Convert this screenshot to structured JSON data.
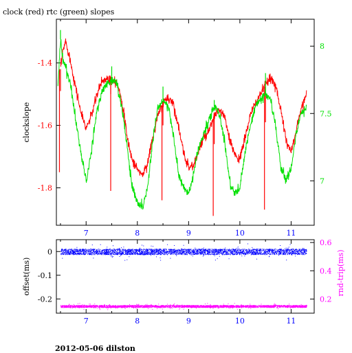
{
  "header": {
    "title": "clock (red) rtc (green) slopes"
  },
  "footer": {
    "caption": "2012-05-06 dilston"
  },
  "colors": {
    "clock": "#ff0000",
    "rtc": "#00e000",
    "offset": "#0000ff",
    "roundtrip": "#ff00ff",
    "axis": "#000000"
  },
  "chart_data": [
    {
      "type": "line",
      "title": "clock (red) rtc (green) slopes",
      "xlabel": "",
      "ylabel": "clockslope",
      "y2label": "",
      "xlim": [
        6.42,
        11.45
      ],
      "ylim": [
        -1.92,
        -1.26
      ],
      "y2lim": [
        6.67,
        8.2
      ],
      "x_ticks": [
        7,
        8,
        9,
        10,
        11
      ],
      "x_tick_labels": [
        "7",
        "8",
        "9",
        "10",
        "11"
      ],
      "y_ticks": [
        -1.4,
        -1.6,
        -1.8
      ],
      "y_tick_labels": [
        "-1.4",
        "-1.6",
        "-1.8"
      ],
      "y2_ticks": [
        8,
        7.5,
        7
      ],
      "y2_tick_labels": [
        "8",
        "7.5",
        "7"
      ],
      "grid": false,
      "series": [
        {
          "name": "clock",
          "axis": "left",
          "color": "#ff0000",
          "x": [
            6.5,
            6.55,
            6.6,
            6.65,
            6.7,
            6.8,
            6.9,
            7.0,
            7.1,
            7.2,
            7.3,
            7.4,
            7.5,
            7.6,
            7.7,
            7.8,
            7.9,
            8.0,
            8.1,
            8.2,
            8.3,
            8.4,
            8.5,
            8.6,
            8.7,
            8.8,
            8.9,
            9.0,
            9.1,
            9.2,
            9.3,
            9.4,
            9.5,
            9.6,
            9.7,
            9.8,
            9.9,
            10.0,
            10.1,
            10.2,
            10.3,
            10.4,
            10.5,
            10.6,
            10.7,
            10.8,
            10.9,
            11.0,
            11.1,
            11.2,
            11.3
          ],
          "y": [
            -1.42,
            -1.36,
            -1.33,
            -1.36,
            -1.4,
            -1.48,
            -1.56,
            -1.61,
            -1.57,
            -1.51,
            -1.46,
            -1.45,
            -1.45,
            -1.46,
            -1.52,
            -1.64,
            -1.71,
            -1.74,
            -1.76,
            -1.72,
            -1.64,
            -1.57,
            -1.53,
            -1.51,
            -1.53,
            -1.6,
            -1.69,
            -1.73,
            -1.73,
            -1.68,
            -1.64,
            -1.62,
            -1.57,
            -1.55,
            -1.57,
            -1.65,
            -1.69,
            -1.71,
            -1.64,
            -1.57,
            -1.53,
            -1.5,
            -1.47,
            -1.45,
            -1.47,
            -1.55,
            -1.65,
            -1.68,
            -1.62,
            -1.54,
            -1.5
          ],
          "spikes": [
            {
              "x": 6.48,
              "y": -1.75
            },
            {
              "x": 6.5,
              "y": -1.49
            },
            {
              "x": 7.48,
              "y": -1.81
            },
            {
              "x": 7.48,
              "y": -1.5
            },
            {
              "x": 8.48,
              "y": -1.84
            },
            {
              "x": 8.5,
              "y": -1.6
            },
            {
              "x": 9.48,
              "y": -1.89
            },
            {
              "x": 9.5,
              "y": -1.66
            },
            {
              "x": 10.48,
              "y": -1.87
            },
            {
              "x": 10.5,
              "y": -1.59
            }
          ]
        },
        {
          "name": "rtc",
          "axis": "right",
          "color": "#00e000",
          "x": [
            6.45,
            6.5,
            6.55,
            6.6,
            6.7,
            6.8,
            6.9,
            7.0,
            7.1,
            7.2,
            7.3,
            7.4,
            7.5,
            7.6,
            7.7,
            7.8,
            7.9,
            8.0,
            8.1,
            8.2,
            8.3,
            8.4,
            8.5,
            8.6,
            8.7,
            8.8,
            8.9,
            9.0,
            9.1,
            9.2,
            9.3,
            9.4,
            9.5,
            9.6,
            9.7,
            9.8,
            9.9,
            10.0,
            10.1,
            10.2,
            10.3,
            10.4,
            10.5,
            10.6,
            10.7,
            10.8,
            10.9,
            11.0,
            11.1,
            11.2,
            11.3
          ],
          "y": [
            7.7,
            8.05,
            7.9,
            7.85,
            7.7,
            7.45,
            7.2,
            7.0,
            7.2,
            7.5,
            7.65,
            7.72,
            7.75,
            7.72,
            7.55,
            7.25,
            6.95,
            6.85,
            6.8,
            6.95,
            7.3,
            7.55,
            7.6,
            7.55,
            7.35,
            7.05,
            6.95,
            6.9,
            7.05,
            7.25,
            7.35,
            7.45,
            7.55,
            7.5,
            7.3,
            7.0,
            6.9,
            6.95,
            7.2,
            7.4,
            7.55,
            7.6,
            7.65,
            7.6,
            7.4,
            7.1,
            7.0,
            7.1,
            7.35,
            7.5,
            7.55
          ],
          "spikes": [
            {
              "x": 6.5,
              "y": 8.12
            },
            {
              "x": 7.5,
              "y": 7.85
            },
            {
              "x": 8.5,
              "y": 7.7
            },
            {
              "x": 9.5,
              "y": 7.6
            },
            {
              "x": 10.5,
              "y": 7.8
            }
          ]
        }
      ]
    },
    {
      "type": "scatter",
      "xlabel": "",
      "ylabel": "offset(ms)",
      "y2label": "rnd-trip(ms)",
      "xlim": [
        6.42,
        11.45
      ],
      "ylim": [
        -0.26,
        0.05
      ],
      "y2lim": [
        0.1,
        0.62
      ],
      "x_ticks": [
        7,
        8,
        9,
        10,
        11
      ],
      "x_tick_labels": [
        "7",
        "8",
        "9",
        "10",
        "11"
      ],
      "y_ticks": [
        0,
        -0.1,
        -0.2
      ],
      "y_tick_labels": [
        "0",
        "-0.1",
        "-0.2"
      ],
      "y2_ticks": [
        0.6,
        0.4,
        0.2
      ],
      "y2_tick_labels": [
        "0.6",
        "0.4",
        "0.2"
      ],
      "grid": false,
      "series": [
        {
          "name": "offset",
          "axis": "left",
          "color": "#0000ff",
          "x_range": [
            6.5,
            11.3
          ],
          "center": 0.0,
          "spread": 0.012
        },
        {
          "name": "rnd-trip",
          "axis": "right",
          "color": "#ff00ff",
          "x_range": [
            6.5,
            11.3
          ],
          "center": 0.15,
          "spread": 0.008
        }
      ]
    }
  ]
}
